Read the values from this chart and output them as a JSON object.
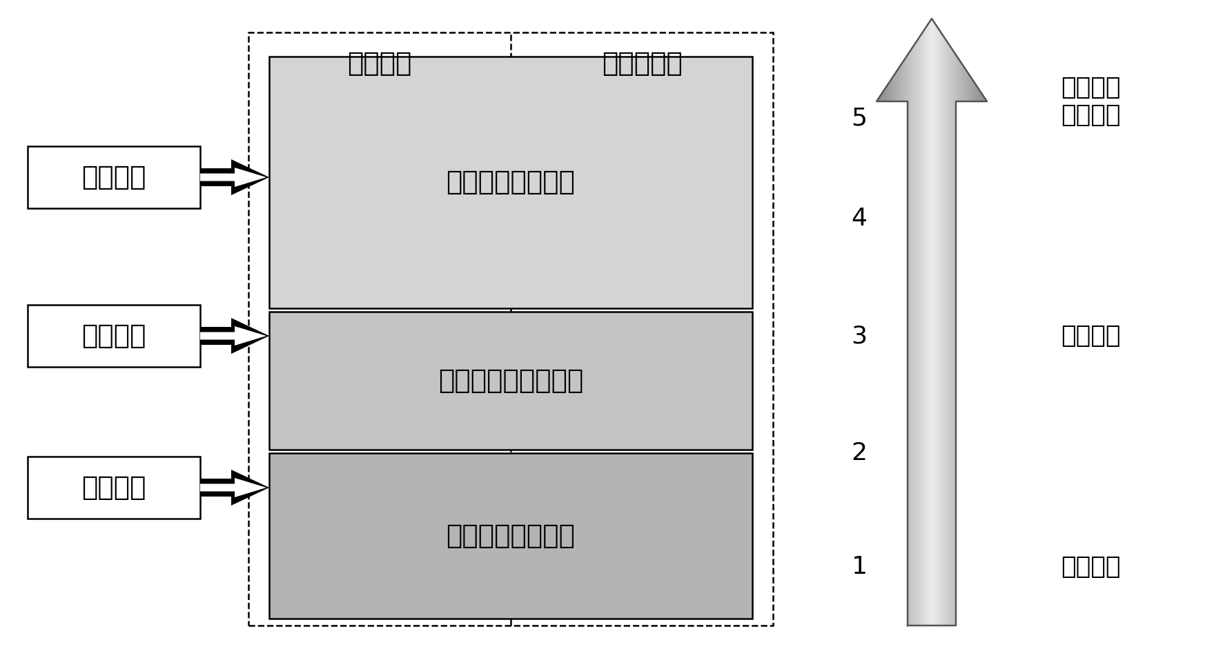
{
  "bg_color": "#ffffff",
  "box_labels": [
    "最终目标",
    "直接目标",
    "工作目标"
  ],
  "dashed_left_label": "达标区域",
  "dashed_right_label": "非达标区域",
  "inner_labels": [
    "环境质量改善情况",
    "源达标排放改善状况",
    "制度实施过程情况"
  ],
  "inner_colors": [
    "#d8d8d8",
    "#c8c8c8",
    "#b8b8b8"
  ],
  "scale_numbers": [
    "1",
    "2",
    "3",
    "4",
    "5"
  ],
  "stage_labels": [
    "信息阶段",
    "守法阶段",
    "环境质量\n改善阶段"
  ],
  "font_size_main": 28,
  "font_size_label": 28,
  "font_size_scale": 26,
  "font_size_stage": 26
}
